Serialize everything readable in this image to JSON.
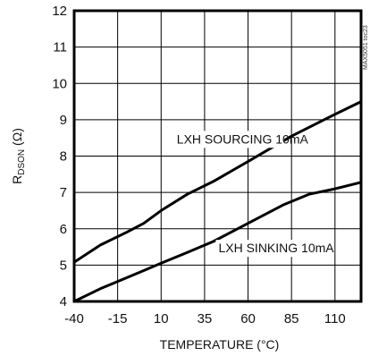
{
  "chart_data": {
    "type": "line",
    "xlabel": "TEMPERATURE (°C)",
    "ylabel_main": "R",
    "ylabel_sub": "DSON",
    "ylabel_unit": " (Ω)",
    "xlim": [
      -40,
      125
    ],
    "ylim": [
      4,
      12
    ],
    "xticks": [
      -40,
      -15,
      10,
      35,
      60,
      85,
      110
    ],
    "yticks": [
      4,
      5,
      6,
      7,
      8,
      9,
      10,
      11,
      12
    ],
    "grid": true,
    "watermark": "MAX5051 toc23",
    "series": [
      {
        "name": "LXH SOURCING 10mA",
        "x": [
          -40,
          -25,
          -10,
          0,
          10,
          25,
          40,
          60,
          85,
          110,
          125
        ],
        "y": [
          5.08,
          5.55,
          5.9,
          6.15,
          6.5,
          6.95,
          7.3,
          7.85,
          8.55,
          9.15,
          9.5
        ]
      },
      {
        "name": "LXH SINKING 10mA",
        "x": [
          -40,
          -25,
          -10,
          0,
          10,
          25,
          40,
          60,
          80,
          95,
          110,
          125
        ],
        "y": [
          4.0,
          4.35,
          4.65,
          4.85,
          5.05,
          5.35,
          5.65,
          6.15,
          6.65,
          6.95,
          7.1,
          7.28
        ]
      }
    ]
  }
}
